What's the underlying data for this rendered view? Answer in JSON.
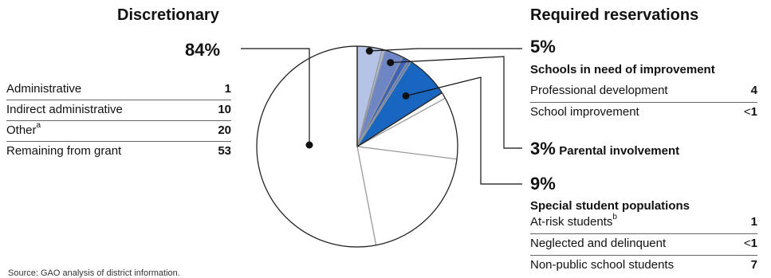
{
  "colors": {
    "discretionary": "#ffffff",
    "prof_dev": "#b4c3e6",
    "school_improvement": "#a9b6d8",
    "parental": "#6f86c4",
    "at_risk": "#3f63b2",
    "neglected": "#5b7bc0",
    "non_public": "#1866c0",
    "outline": "#222222",
    "inner_lines": "#999999"
  },
  "left": {
    "heading": "Discretionary",
    "total_label": "84%",
    "items": [
      {
        "label": "Administrative",
        "sup": "",
        "value": "1"
      },
      {
        "label": "Indirect administrative",
        "sup": "",
        "value": "10"
      },
      {
        "label": "Other",
        "sup": "a",
        "value": "20"
      },
      {
        "label": "Remaining from grant",
        "sup": "",
        "value": "53"
      }
    ]
  },
  "right": {
    "heading": "Required reservations",
    "group1": {
      "pct": "5%",
      "title": "Schools in need of improvement",
      "items": [
        {
          "label": "Professional development",
          "sup": "",
          "value": "4",
          "lt": ""
        },
        {
          "label": "School improvement",
          "sup": "",
          "value": "1",
          "lt": "<"
        }
      ]
    },
    "group2": {
      "pct": "3%",
      "title": "Parental involvement"
    },
    "group3": {
      "pct": "9%",
      "title": "Special student populations",
      "items": [
        {
          "label": "At-risk students",
          "sup": "b",
          "value": "1",
          "lt": ""
        },
        {
          "label": "Neglected and delinquent",
          "sup": "",
          "value": "1",
          "lt": "<"
        },
        {
          "label": "Non-public school students",
          "sup": "",
          "value": "7",
          "lt": ""
        }
      ]
    }
  },
  "source": "Source: GAO analysis of district information.",
  "chart_data": {
    "type": "pie",
    "title": "",
    "start": "top, clockwise",
    "slices": [
      {
        "group": "Required reservations",
        "label": "Professional development",
        "value": 4
      },
      {
        "group": "Required reservations",
        "label": "School improvement",
        "value": 0.5
      },
      {
        "group": "Required reservations",
        "label": "Parental involvement",
        "value": 3
      },
      {
        "group": "Required reservations",
        "label": "At-risk students",
        "value": 1
      },
      {
        "group": "Required reservations",
        "label": "Neglected and delinquent",
        "value": 0.5
      },
      {
        "group": "Required reservations",
        "label": "Non-public school students",
        "value": 7
      },
      {
        "group": "Discretionary",
        "label": "Administrative",
        "value": 1
      },
      {
        "group": "Discretionary",
        "label": "Indirect administrative",
        "value": 10
      },
      {
        "group": "Discretionary",
        "label": "Other",
        "value": 20
      },
      {
        "group": "Discretionary",
        "label": "Remaining from grant",
        "value": 53
      }
    ],
    "group_totals": [
      {
        "label": "Discretionary",
        "value": 84
      },
      {
        "label": "Schools in need of improvement",
        "value": 5
      },
      {
        "label": "Parental involvement",
        "value": 3
      },
      {
        "label": "Special student populations",
        "value": 9
      }
    ]
  }
}
